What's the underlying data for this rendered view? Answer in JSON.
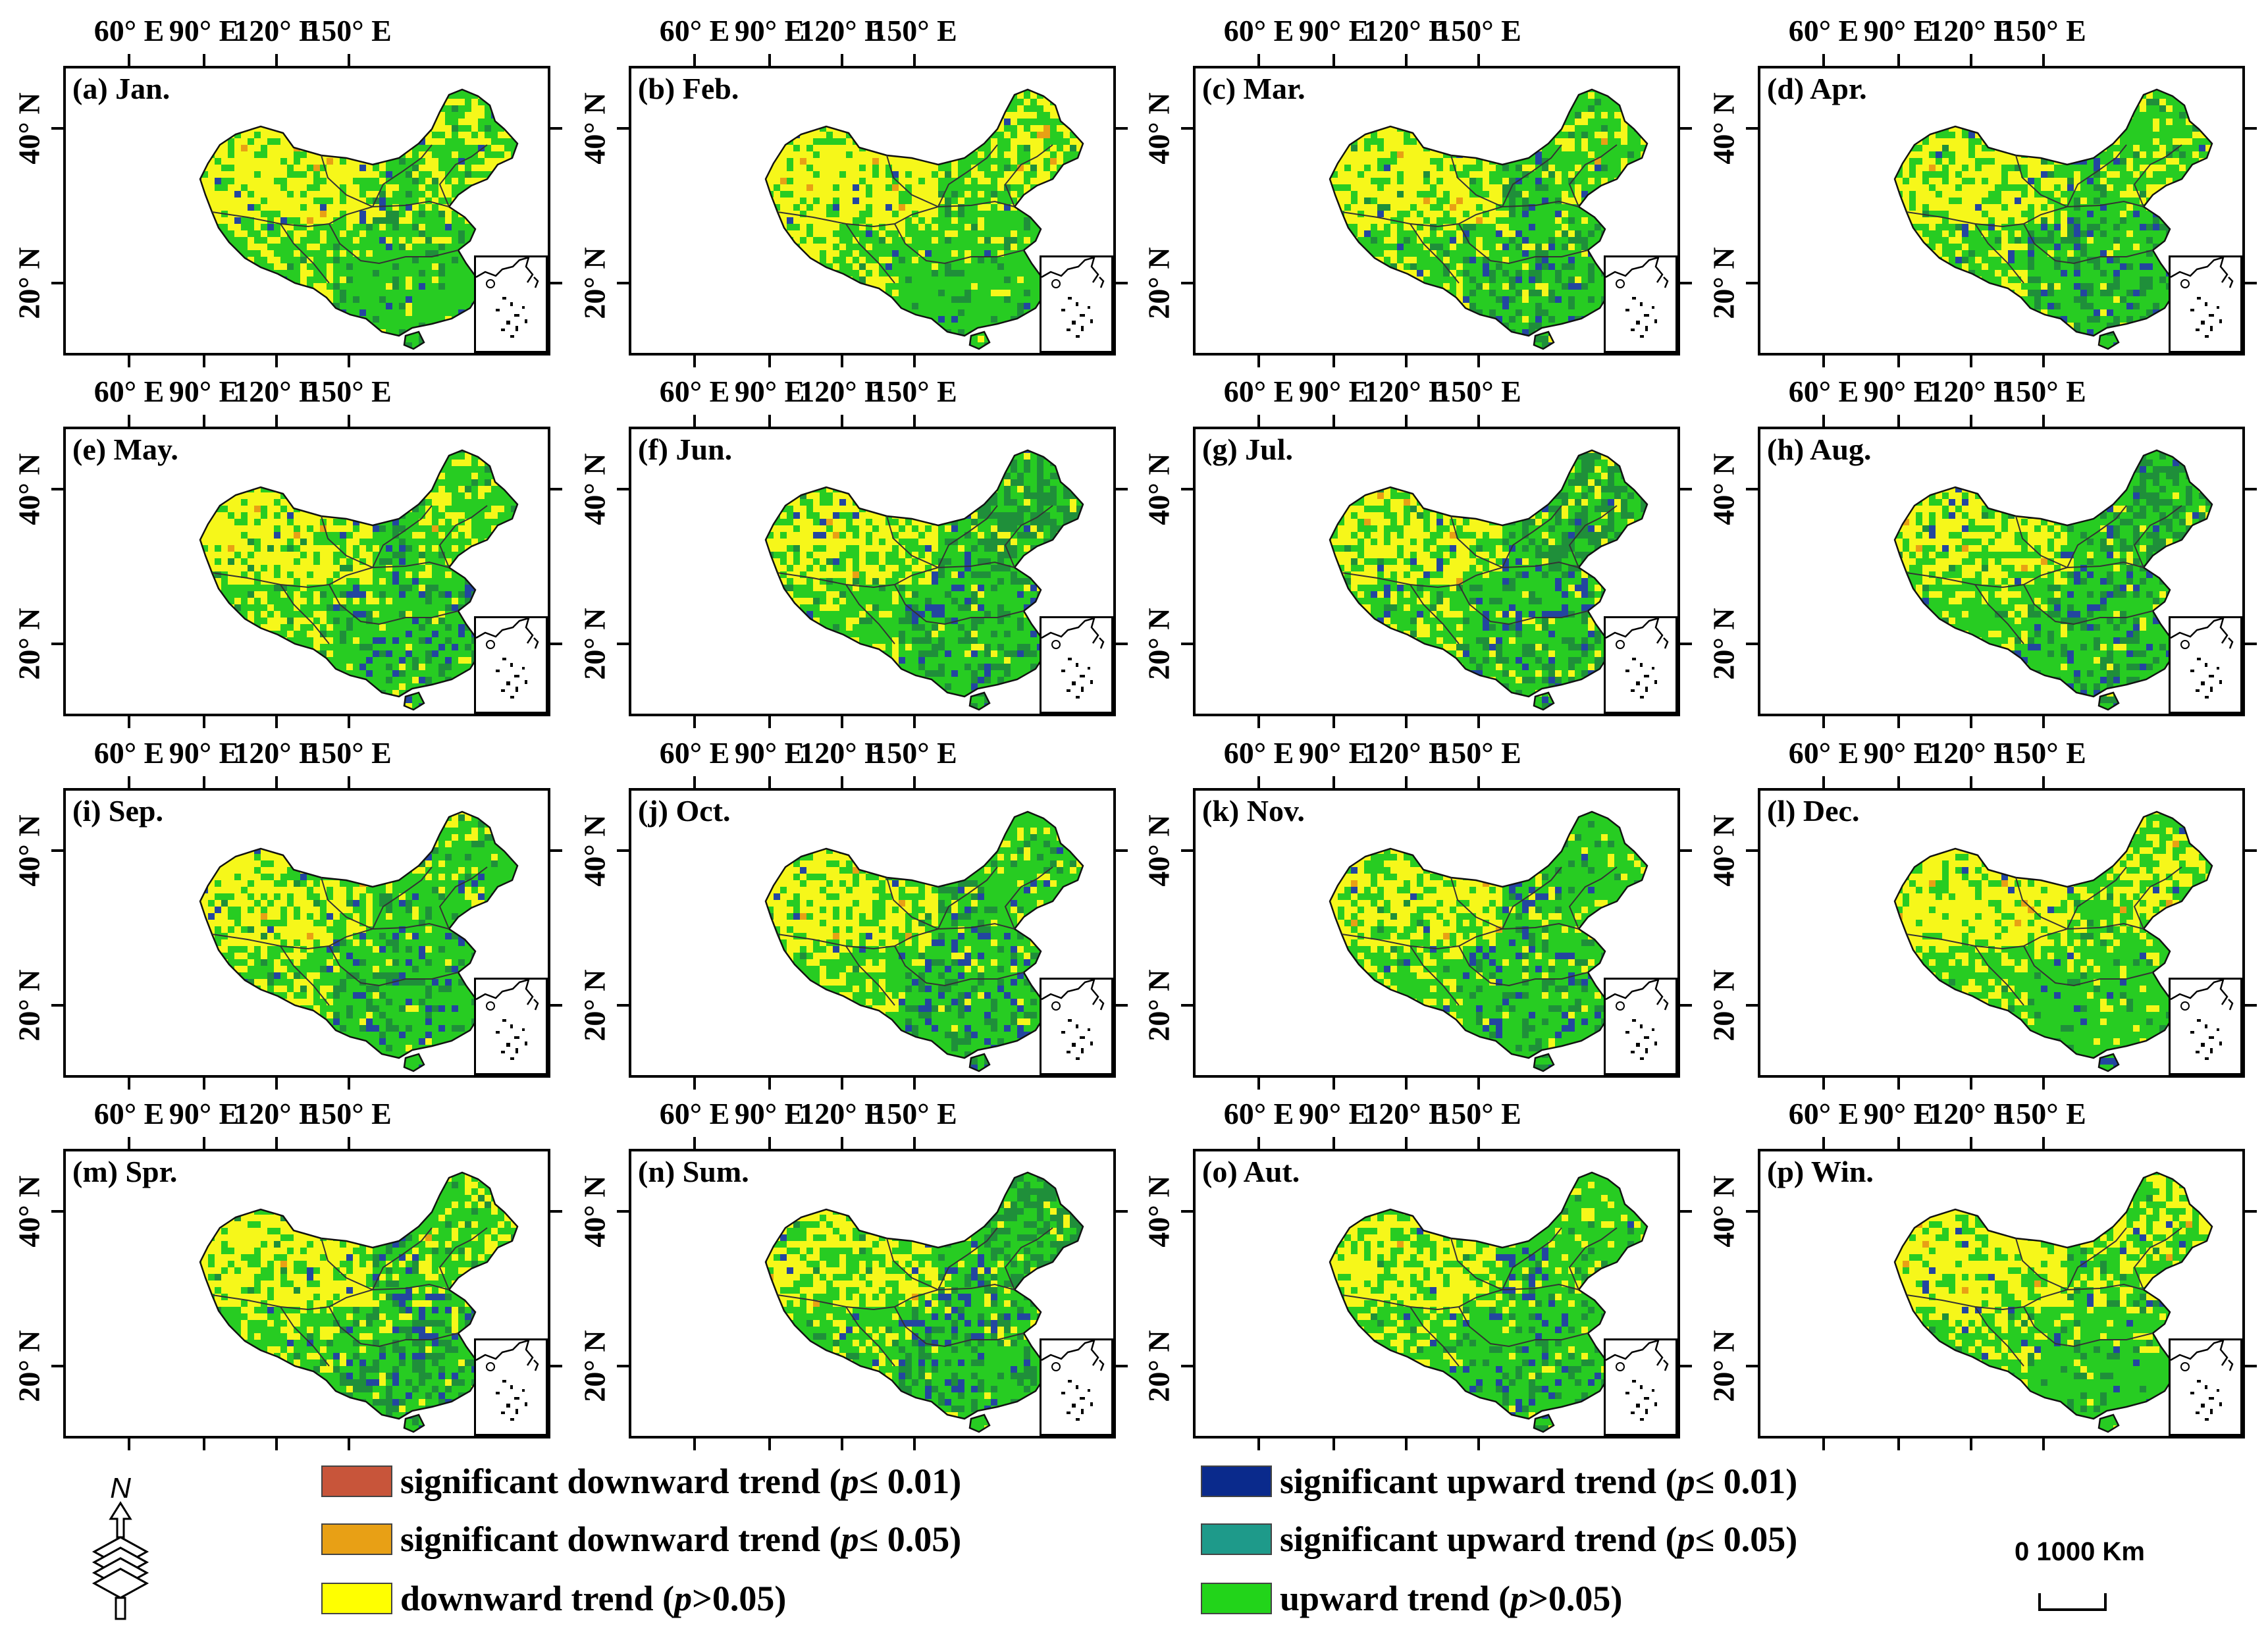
{
  "lon_labels": [
    "60° E",
    "90° E",
    "120° E",
    "150° E"
  ],
  "lat_labels": [
    "40° N",
    "20° N"
  ],
  "panels": [
    {
      "label": "(a) Jan.",
      "scheme": "winter"
    },
    {
      "label": "(b) Feb.",
      "scheme": "winter"
    },
    {
      "label": "(c) Mar.",
      "scheme": "spring"
    },
    {
      "label": "(d) Apr.",
      "scheme": "spring"
    },
    {
      "label": "(e) May.",
      "scheme": "spring"
    },
    {
      "label": "(f) Jun.",
      "scheme": "summer"
    },
    {
      "label": "(g) Jul.",
      "scheme": "summer"
    },
    {
      "label": "(h) Aug.",
      "scheme": "summer"
    },
    {
      "label": "(i) Sep.",
      "scheme": "autumn"
    },
    {
      "label": "(j) Oct.",
      "scheme": "autumn"
    },
    {
      "label": "(k) Nov.",
      "scheme": "autumn"
    },
    {
      "label": "(l) Dec.",
      "scheme": "winter"
    },
    {
      "label": "(m) Spr.",
      "scheme": "spring"
    },
    {
      "label": "(n) Sum.",
      "scheme": "summer"
    },
    {
      "label": "(o) Aut.",
      "scheme": "autumn"
    },
    {
      "label": "(p) Win.",
      "scheme": "winter"
    }
  ],
  "legend": [
    {
      "before": "significant downward trend (",
      "p": "p",
      "after": "≤ 0.01)",
      "color": "#c8553a"
    },
    {
      "before": "significant downward trend (",
      "p": "p",
      "after": "≤ 0.05)",
      "color": "#e8a015"
    },
    {
      "before": "downward trend (",
      "p": "p",
      "after": ">0.05)",
      "color": "#ffff00"
    },
    {
      "before": "significant upward trend (",
      "p": "p",
      "after": "≤ 0.01)",
      "color": "#0a2a8c"
    },
    {
      "before": "significant upward trend (",
      "p": "p",
      "after": "≤ 0.05)",
      "color": "#1e9a8a"
    },
    {
      "before": "upward trend (",
      "p": "p",
      "after": ">0.05)",
      "color": "#22d41a"
    }
  ],
  "north_arrow": {
    "letter": "N"
  },
  "scale": {
    "text": "0  1000 Km"
  },
  "colors": {
    "yellow": "#f6f71a",
    "green": "#27cc22",
    "darkgreen": "#1f8f3a",
    "blue": "#2346a0",
    "orange": "#e8a015",
    "red": "#c8553a",
    "border": "#333333"
  }
}
